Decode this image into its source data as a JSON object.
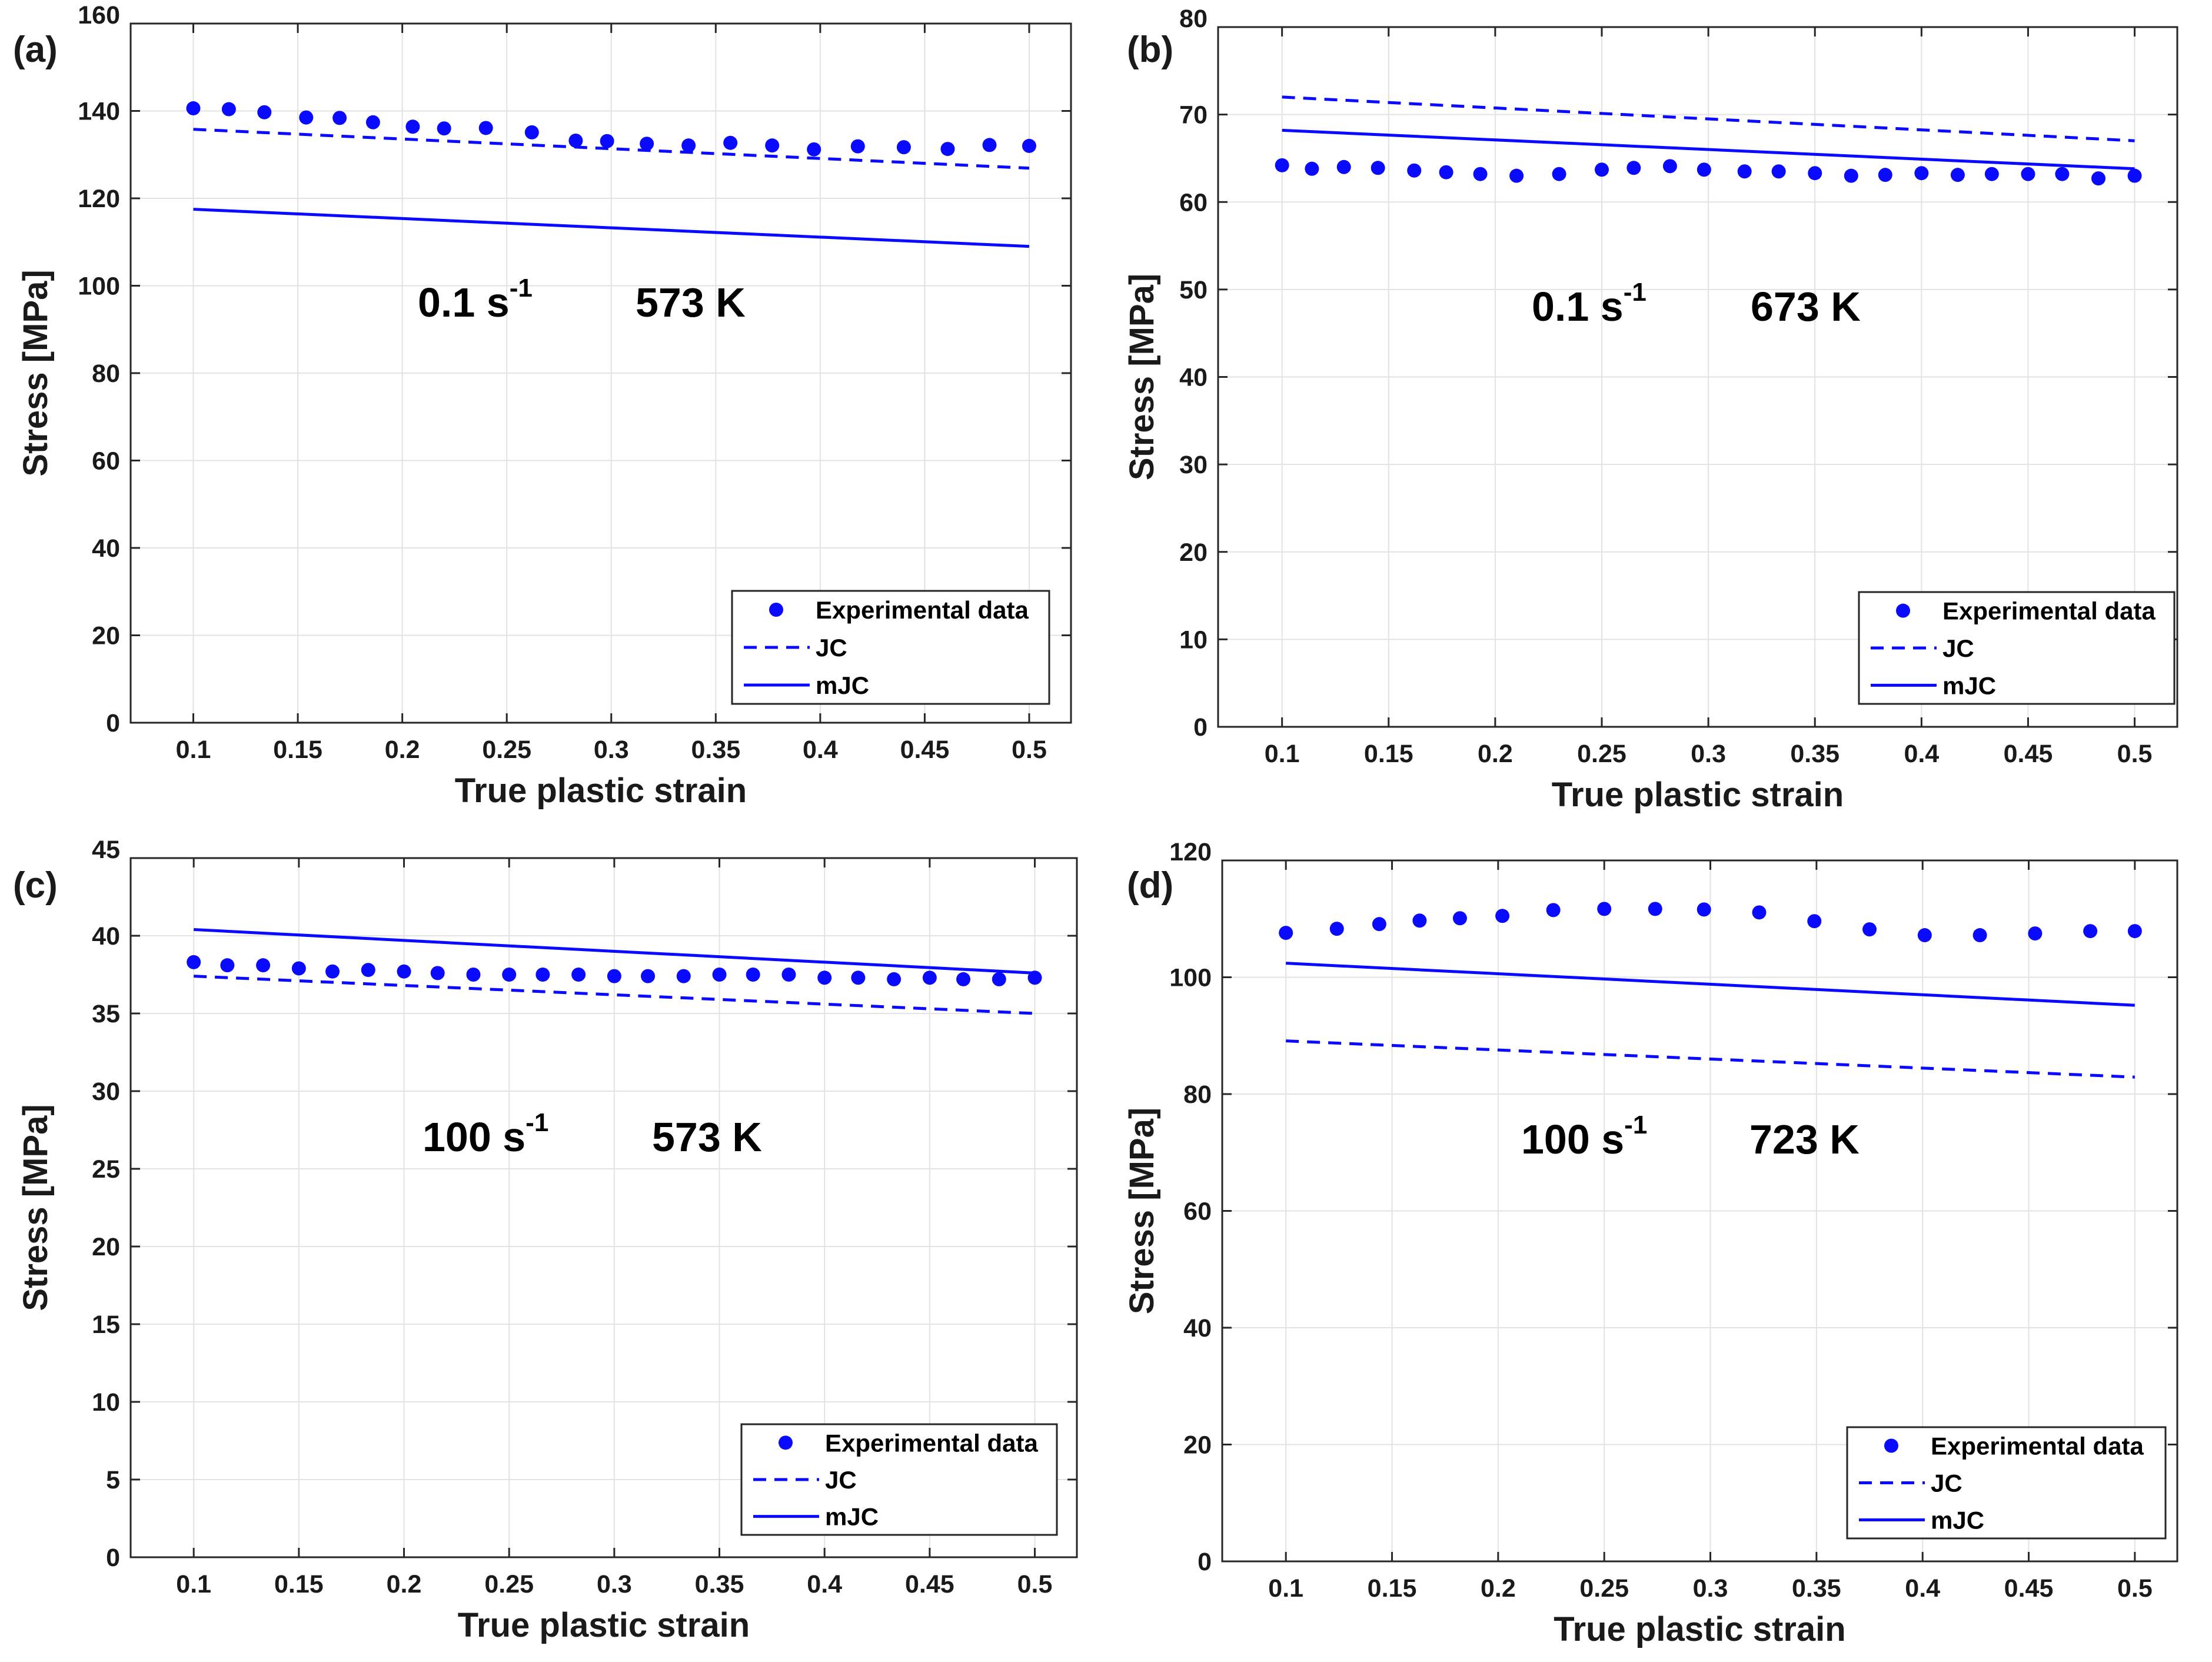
{
  "chart_data": [
    {
      "type": "line",
      "panel_label": "(a)",
      "xlabel": "True plastic strain",
      "ylabel": "Stress [MPa]",
      "xlim": [
        0.07,
        0.52
      ],
      "ylim": [
        0,
        160
      ],
      "xticks": [
        0.1,
        0.15,
        0.2,
        0.25,
        0.3,
        0.35,
        0.4,
        0.45,
        0.5
      ],
      "xtick_labels": [
        "0.1",
        "0.15",
        "0.2",
        "0.25",
        "0.3",
        "0.35",
        "0.4",
        "0.45",
        "0.5"
      ],
      "yticks": [
        0,
        20,
        40,
        60,
        80,
        100,
        120,
        140,
        160
      ],
      "ytick_labels": [
        "0",
        "20",
        "40",
        "60",
        "80",
        "100",
        "120",
        "140",
        "160"
      ],
      "annotation_rate": "0.1 s",
      "annotation_rate_sup": "-1",
      "annotation_temp": "573 K",
      "grid": true,
      "legend_position": "bottom-right",
      "series": [
        {
          "name": "Experimental data",
          "style": "markers",
          "x": [
            0.1,
            0.117,
            0.134,
            0.154,
            0.17,
            0.186,
            0.205,
            0.22,
            0.24,
            0.262,
            0.283,
            0.298,
            0.317,
            0.337,
            0.357,
            0.377,
            0.397,
            0.418,
            0.44,
            0.461,
            0.481,
            0.5
          ],
          "y": [
            140.6,
            140.4,
            139.7,
            138.5,
            138.4,
            137.4,
            136.4,
            136.0,
            136.1,
            135.1,
            133.2,
            133.1,
            132.5,
            132.1,
            132.7,
            132.1,
            131.2,
            131.9,
            131.7,
            131.3,
            132.2,
            132.0
          ]
        },
        {
          "name": "JC",
          "style": "dashed",
          "x": [
            0.1,
            0.5
          ],
          "y": [
            135.8,
            126.9
          ]
        },
        {
          "name": "mJC",
          "style": "solid",
          "x": [
            0.1,
            0.5
          ],
          "y": [
            117.5,
            109.0
          ]
        }
      ]
    },
    {
      "type": "line",
      "panel_label": "(b)",
      "xlabel": "True plastic strain",
      "ylabel": "Stress [MPa]",
      "xlim": [
        0.07,
        0.52
      ],
      "ylim": [
        0,
        80
      ],
      "xticks": [
        0.1,
        0.15,
        0.2,
        0.25,
        0.3,
        0.35,
        0.4,
        0.45,
        0.5
      ],
      "xtick_labels": [
        "0.1",
        "0.15",
        "0.2",
        "0.25",
        "0.3",
        "0.35",
        "0.4",
        "0.45",
        "0.5"
      ],
      "yticks": [
        0,
        10,
        20,
        30,
        40,
        50,
        60,
        70,
        80
      ],
      "ytick_labels": [
        "0",
        "10",
        "20",
        "30",
        "40",
        "50",
        "60",
        "70",
        "80"
      ],
      "annotation_rate": "0.1 s",
      "annotation_rate_sup": "-1",
      "annotation_temp": "673 K",
      "grid": true,
      "legend_position": "bottom-right",
      "series": [
        {
          "name": "Experimental data",
          "style": "markers",
          "x": [
            0.1,
            0.114,
            0.129,
            0.145,
            0.162,
            0.177,
            0.193,
            0.21,
            0.23,
            0.25,
            0.265,
            0.282,
            0.298,
            0.317,
            0.333,
            0.35,
            0.367,
            0.383,
            0.4,
            0.417,
            0.433,
            0.45,
            0.466,
            0.483,
            0.5
          ],
          "y": [
            64.2,
            63.8,
            64.0,
            63.9,
            63.6,
            63.4,
            63.2,
            63.0,
            63.2,
            63.7,
            63.9,
            64.1,
            63.7,
            63.5,
            63.5,
            63.3,
            63.0,
            63.1,
            63.3,
            63.1,
            63.2,
            63.2,
            63.2,
            62.7,
            63.0
          ]
        },
        {
          "name": "JC",
          "style": "dashed",
          "x": [
            0.1,
            0.5
          ],
          "y": [
            72.0,
            67.0
          ]
        },
        {
          "name": "mJC",
          "style": "solid",
          "x": [
            0.1,
            0.5
          ],
          "y": [
            68.2,
            63.8
          ]
        }
      ]
    },
    {
      "type": "line",
      "panel_label": "(c)",
      "xlabel": "True plastic strain",
      "ylabel": "Stress [MPa]",
      "xlim": [
        0.07,
        0.52
      ],
      "ylim": [
        0,
        45
      ],
      "xticks": [
        0.1,
        0.15,
        0.2,
        0.25,
        0.3,
        0.35,
        0.4,
        0.45,
        0.5
      ],
      "xtick_labels": [
        "0.1",
        "0.15",
        "0.2",
        "0.25",
        "0.3",
        "0.35",
        "0.4",
        "0.45",
        "0.5"
      ],
      "yticks": [
        0,
        5,
        10,
        15,
        20,
        25,
        30,
        35,
        40,
        45
      ],
      "ytick_labels": [
        "0",
        "5",
        "10",
        "15",
        "20",
        "25",
        "30",
        "35",
        "40",
        "45"
      ],
      "annotation_rate": "100 s",
      "annotation_rate_sup": "-1",
      "annotation_temp": "573 K",
      "grid": true,
      "legend_position": "bottom-right",
      "series": [
        {
          "name": "Experimental data",
          "style": "markers",
          "x": [
            0.1,
            0.116,
            0.133,
            0.15,
            0.166,
            0.183,
            0.2,
            0.216,
            0.233,
            0.25,
            0.266,
            0.283,
            0.3,
            0.316,
            0.333,
            0.35,
            0.366,
            0.383,
            0.4,
            0.416,
            0.433,
            0.45,
            0.466,
            0.483,
            0.5
          ],
          "y": [
            38.3,
            38.1,
            38.1,
            37.9,
            37.7,
            37.8,
            37.7,
            37.6,
            37.5,
            37.5,
            37.5,
            37.5,
            37.4,
            37.4,
            37.4,
            37.5,
            37.5,
            37.5,
            37.3,
            37.3,
            37.2,
            37.3,
            37.2,
            37.2,
            37.3
          ]
        },
        {
          "name": "JC",
          "style": "dashed",
          "x": [
            0.1,
            0.5
          ],
          "y": [
            37.4,
            35.0
          ]
        },
        {
          "name": "mJC",
          "style": "solid",
          "x": [
            0.1,
            0.5
          ],
          "y": [
            40.4,
            37.6
          ]
        }
      ]
    },
    {
      "type": "line",
      "panel_label": "(d)",
      "xlabel": "True plastic strain",
      "ylabel": "Stress [MPa]",
      "xlim": [
        0.07,
        0.52
      ],
      "ylim": [
        0,
        120
      ],
      "xticks": [
        0.1,
        0.15,
        0.2,
        0.25,
        0.3,
        0.35,
        0.4,
        0.45,
        0.5
      ],
      "xtick_labels": [
        "0.1",
        "0.15",
        "0.2",
        "0.25",
        "0.3",
        "0.35",
        "0.4",
        "0.45",
        "0.5"
      ],
      "yticks": [
        0,
        20,
        40,
        60,
        80,
        100,
        120
      ],
      "ytick_labels": [
        "0",
        "20",
        "40",
        "60",
        "80",
        "100",
        "120"
      ],
      "annotation_rate": "100 s",
      "annotation_rate_sup": "-1",
      "annotation_temp": "723 K",
      "grid": true,
      "legend_position": "bottom-right",
      "series": [
        {
          "name": "Experimental data",
          "style": "markers",
          "x": [
            0.1,
            0.124,
            0.144,
            0.163,
            0.182,
            0.202,
            0.226,
            0.25,
            0.274,
            0.297,
            0.323,
            0.349,
            0.375,
            0.401,
            0.427,
            0.453,
            0.479,
            0.5
          ],
          "y": [
            107.6,
            108.3,
            109.1,
            109.7,
            110.1,
            110.5,
            111.5,
            111.7,
            111.7,
            111.6,
            111.1,
            109.6,
            108.2,
            107.2,
            107.2,
            107.5,
            107.9,
            107.9
          ]
        },
        {
          "name": "JC",
          "style": "dashed",
          "x": [
            0.1,
            0.5
          ],
          "y": [
            89.1,
            82.9
          ]
        },
        {
          "name": "mJC",
          "style": "solid",
          "x": [
            0.1,
            0.5
          ],
          "y": [
            102.4,
            95.2
          ]
        }
      ]
    }
  ],
  "colors": {
    "series": "#0a0aff",
    "grid": "#e2e2e2",
    "axis": "#262626"
  }
}
